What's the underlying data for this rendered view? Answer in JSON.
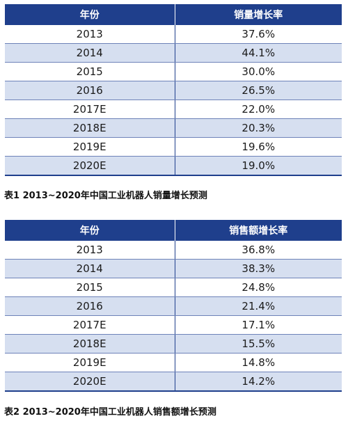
{
  "table1": {
    "headers": [
      "年份",
      "销量增长率"
    ],
    "rows": [
      [
        "2013",
        "37.6%"
      ],
      [
        "2014",
        "44.1%"
      ],
      [
        "2015",
        "30.0%"
      ],
      [
        "2016",
        "26.5%"
      ],
      [
        "2017E",
        "22.0%"
      ],
      [
        "2018E",
        "20.3%"
      ],
      [
        "2019E",
        "19.6%"
      ],
      [
        "2020E",
        "19.0%"
      ]
    ],
    "caption": "表1  2013~2020年中国工业机器人销量增长预测"
  },
  "table2": {
    "headers": [
      "年份",
      "销售额增长率"
    ],
    "rows": [
      [
        "2013",
        "36.8%"
      ],
      [
        "2014",
        "38.3%"
      ],
      [
        "2015",
        "24.8%"
      ],
      [
        "2016",
        "21.4%"
      ],
      [
        "2017E",
        "17.1%"
      ],
      [
        "2018E",
        "15.5%"
      ],
      [
        "2019E",
        "14.8%"
      ],
      [
        "2020E",
        "14.2%"
      ]
    ],
    "caption": "表2  2013~2020年中国工业机器人销售额增长预测"
  },
  "colors": {
    "header_bg": "#1f3f8c",
    "alt_row_bg": "#d6dff0",
    "border": "#1f3f8c"
  }
}
